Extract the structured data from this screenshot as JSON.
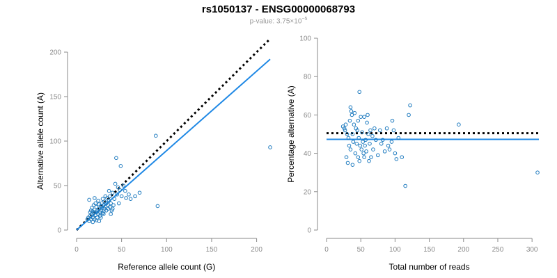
{
  "title": "rs1050137 - ENSG00000068793",
  "subtitle": {
    "prefix": "p-value: 3.75×10",
    "exponent": "−5"
  },
  "colors": {
    "points": "#1f7bbf",
    "fit_line": "#1e88e5",
    "reference_line": "#000000",
    "axis": "#8a8a8a"
  },
  "chart_data": [
    {
      "type": "scatter",
      "xlabel": "Reference allele count (G)",
      "ylabel": "Alternative allele count (A)",
      "xlim": [
        0,
        215
      ],
      "ylim": [
        0,
        200
      ],
      "xticks": [
        0,
        50,
        100,
        150,
        200
      ],
      "yticks": [
        0,
        50,
        100,
        150,
        200
      ],
      "points": [
        [
          12,
          12
        ],
        [
          13,
          14
        ],
        [
          14,
          10
        ],
        [
          15,
          16
        ],
        [
          15,
          20
        ],
        [
          16,
          22
        ],
        [
          17,
          18
        ],
        [
          17,
          25
        ],
        [
          18,
          14
        ],
        [
          18,
          21
        ],
        [
          19,
          19
        ],
        [
          19,
          28
        ],
        [
          20,
          12
        ],
        [
          20,
          23
        ],
        [
          21,
          17
        ],
        [
          21,
          30
        ],
        [
          22,
          20
        ],
        [
          22,
          26
        ],
        [
          23,
          14
        ],
        [
          23,
          22
        ],
        [
          24,
          18
        ],
        [
          24,
          33
        ],
        [
          25,
          24
        ],
        [
          25,
          29
        ],
        [
          26,
          20
        ],
        [
          26,
          16
        ],
        [
          27,
          27
        ],
        [
          27,
          22
        ],
        [
          28,
          30
        ],
        [
          28,
          25
        ],
        [
          29,
          19
        ],
        [
          29,
          35
        ],
        [
          30,
          21
        ],
        [
          30,
          28
        ],
        [
          31,
          24
        ],
        [
          31,
          32
        ],
        [
          32,
          26
        ],
        [
          33,
          30
        ],
        [
          33,
          22
        ],
        [
          34,
          36
        ],
        [
          35,
          28
        ],
        [
          35,
          24
        ],
        [
          36,
          33
        ],
        [
          37,
          38
        ],
        [
          37,
          26
        ],
        [
          38,
          30
        ],
        [
          39,
          22
        ],
        [
          40,
          42
        ],
        [
          41,
          28
        ],
        [
          42,
          35
        ],
        [
          43,
          52
        ],
        [
          44,
          81
        ],
        [
          45,
          40
        ],
        [
          46,
          48
        ],
        [
          47,
          30
        ],
        [
          48,
          45
        ],
        [
          49,
          72
        ],
        [
          50,
          38
        ],
        [
          52,
          50
        ],
        [
          54,
          44
        ],
        [
          55,
          36
        ],
        [
          58,
          40
        ],
        [
          60,
          35
        ],
        [
          65,
          38
        ],
        [
          70,
          42
        ],
        [
          88,
          106
        ],
        [
          90,
          27
        ],
        [
          215,
          93
        ],
        [
          14,
          34
        ],
        [
          16,
          12
        ],
        [
          18,
          9
        ],
        [
          20,
          36
        ],
        [
          22,
          11
        ],
        [
          25,
          10
        ],
        [
          27,
          14
        ],
        [
          30,
          18
        ],
        [
          32,
          38
        ],
        [
          36,
          44
        ],
        [
          38,
          18
        ],
        [
          40,
          24
        ]
      ],
      "fit_line": {
        "from": [
          0,
          0
        ],
        "to": [
          215,
          192
        ]
      },
      "reference_line": {
        "from": [
          0,
          0
        ],
        "to": [
          215,
          215
        ]
      }
    },
    {
      "type": "scatter",
      "xlabel": "Total number of reads",
      "ylabel": "Percentage alternative (A)",
      "xlim": [
        0,
        310
      ],
      "ylim": [
        0,
        100
      ],
      "xticks": [
        0,
        50,
        100,
        150,
        200,
        250,
        300
      ],
      "yticks": [
        0,
        20,
        40,
        60,
        80,
        100
      ],
      "points": [
        [
          24,
          54
        ],
        [
          26,
          53
        ],
        [
          27,
          52
        ],
        [
          28,
          55
        ],
        [
          29,
          38
        ],
        [
          30,
          50
        ],
        [
          31,
          35
        ],
        [
          32,
          48
        ],
        [
          33,
          44
        ],
        [
          34,
          57
        ],
        [
          35,
          64
        ],
        [
          35,
          42
        ],
        [
          36,
          62
        ],
        [
          37,
          60
        ],
        [
          38,
          34
        ],
        [
          38,
          50
        ],
        [
          39,
          46
        ],
        [
          40,
          55
        ],
        [
          41,
          61
        ],
        [
          42,
          40
        ],
        [
          43,
          53
        ],
        [
          44,
          45
        ],
        [
          45,
          52
        ],
        [
          46,
          38
        ],
        [
          46,
          57
        ],
        [
          47,
          48
        ],
        [
          48,
          72
        ],
        [
          48,
          36
        ],
        [
          49,
          44
        ],
        [
          50,
          59
        ],
        [
          51,
          42
        ],
        [
          52,
          51
        ],
        [
          53,
          46
        ],
        [
          54,
          40
        ],
        [
          55,
          59
        ],
        [
          55,
          38
        ],
        [
          56,
          44
        ],
        [
          57,
          47
        ],
        [
          58,
          41
        ],
        [
          59,
          56
        ],
        [
          60,
          60
        ],
        [
          61,
          50
        ],
        [
          62,
          36
        ],
        [
          63,
          45
        ],
        [
          64,
          52
        ],
        [
          65,
          38
        ],
        [
          67,
          49
        ],
        [
          68,
          42
        ],
        [
          70,
          53
        ],
        [
          72,
          47
        ],
        [
          75,
          39
        ],
        [
          78,
          52
        ],
        [
          80,
          45
        ],
        [
          82,
          47
        ],
        [
          85,
          41
        ],
        [
          88,
          53
        ],
        [
          90,
          44
        ],
        [
          92,
          42
        ],
        [
          95,
          46
        ],
        [
          96,
          57
        ],
        [
          98,
          52
        ],
        [
          100,
          40
        ],
        [
          102,
          37
        ],
        [
          105,
          48
        ],
        [
          110,
          38
        ],
        [
          115,
          23
        ],
        [
          120,
          60
        ],
        [
          122,
          65
        ],
        [
          193,
          55
        ],
        [
          308,
          30
        ]
      ],
      "fit_line": {
        "from": [
          0,
          47.3
        ],
        "to": [
          310,
          47.3
        ]
      },
      "reference_line": {
        "from": [
          0,
          50.5
        ],
        "to": [
          310,
          50.5
        ]
      }
    }
  ]
}
